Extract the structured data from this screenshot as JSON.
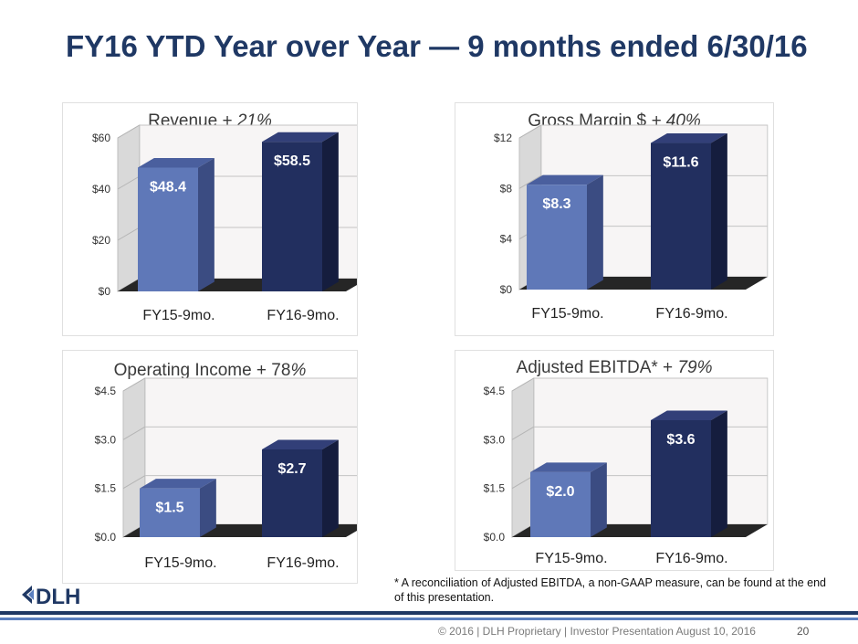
{
  "title": "FY16 YTD Year over Year — 9 months ended 6/30/16",
  "chart_data": [
    {
      "type": "bar",
      "title": "Revenue + ",
      "title_change": "21%",
      "categories": [
        "FY15-9mo.",
        "FY16-9mo."
      ],
      "values": [
        48.4,
        58.5
      ],
      "value_labels": [
        "$48.4",
        "$58.5"
      ],
      "ylim": [
        0,
        60
      ],
      "yticks": [
        0,
        20,
        40,
        60
      ],
      "ytick_labels": [
        "$0",
        "$20",
        "$40",
        "$60"
      ]
    },
    {
      "type": "bar",
      "title": "Gross Margin $ ",
      "title_change": "+ 40%",
      "categories": [
        "FY15-9mo.",
        "FY16-9mo."
      ],
      "values": [
        8.3,
        11.6
      ],
      "value_labels": [
        "$8.3",
        "$11.6"
      ],
      "ylim": [
        0,
        12
      ],
      "yticks": [
        0,
        4,
        8,
        12
      ],
      "ytick_labels": [
        "$0",
        "$4",
        "$8",
        "$12"
      ]
    },
    {
      "type": "bar",
      "title": "Operating Income + 78",
      "title_change": "%",
      "categories": [
        "FY15-9mo.",
        "FY16-9mo."
      ],
      "values": [
        1.5,
        2.7
      ],
      "value_labels": [
        "$1.5",
        "$2.7"
      ],
      "ylim": [
        0,
        4.5
      ],
      "yticks": [
        0,
        1.5,
        3.0,
        4.5
      ],
      "ytick_labels": [
        "$0.0",
        "$1.5",
        "$3.0",
        "$4.5"
      ]
    },
    {
      "type": "bar",
      "title": "Adjusted EBITDA* + ",
      "title_change": "79%",
      "categories": [
        "FY15-9mo.",
        "FY16-9mo."
      ],
      "values": [
        2.0,
        3.6
      ],
      "value_labels": [
        "$2.0",
        "$3.6"
      ],
      "ylim": [
        0,
        4.5
      ],
      "yticks": [
        0,
        1.5,
        3.0,
        4.5
      ],
      "ytick_labels": [
        "$0.0",
        "$1.5",
        "$3.0",
        "$4.5"
      ]
    }
  ],
  "colors": {
    "title": "#1f3864",
    "bar_fy15": "#5f78b8",
    "bar_fy16": "#222f5f",
    "floor": "#262626"
  },
  "footnote": "* A reconciliation of Adjusted EBITDA, a non-GAAP measure, can be found at the end of this presentation.",
  "logo_text": "DLH",
  "footer": "© 2016 | DLH Proprietary | Investor Presentation August 10, 2016",
  "page_number": "20"
}
